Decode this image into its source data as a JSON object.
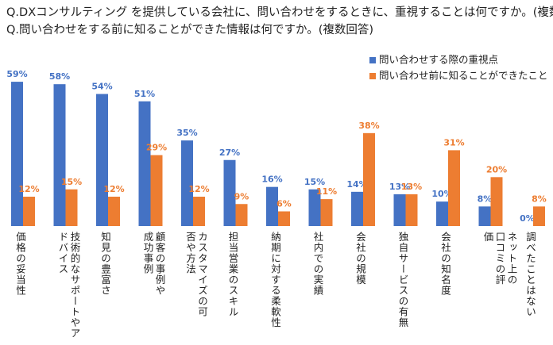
{
  "chart_data": {
    "type": "bar",
    "title": "Q.DXコンサルティング を提供している会社に、問い合わせをするときに、重視することは何ですか。(複数回答)",
    "subtitle": "Q.問い合わせをする前に知ることができた情報は何ですか。(複数回答)",
    "categories": [
      "価格の妥当性",
      "技術的なサポートやアドバイス",
      "知見の豊富さ",
      "顧客の事例や成功事例",
      "カスタマイズの可否や方法",
      "担当営業のスキル",
      "納期に対する柔軟性",
      "社内での実績",
      "会社の規模",
      "独自サービスの有無",
      "会社の知名度",
      "ネット上の口コミの評価",
      "調べたことはない"
    ],
    "ylim": [
      0,
      60
    ],
    "legend": "top-right",
    "series": [
      {
        "name": "問い合わせする際の重視点",
        "color": "#4472c4",
        "values": [
          59,
          58,
          54,
          51,
          35,
          27,
          16,
          15,
          14,
          13,
          10,
          8,
          0
        ],
        "value_labels": [
          "59%",
          "58%",
          "54%",
          "51%",
          "35%",
          "27%",
          "16%",
          "15%",
          "14%",
          "13%",
          "10%",
          "8%",
          "0%"
        ]
      },
      {
        "name": "問い合わせ前に知ることができたこと",
        "color": "#ed7d31",
        "values": [
          12,
          15,
          12,
          29,
          12,
          9,
          6,
          11,
          38,
          13,
          31,
          20,
          8
        ],
        "value_labels": [
          "12%",
          "15%",
          "12%",
          "29%",
          "12%",
          "9%",
          "6%",
          "11%",
          "38%",
          "13%",
          "31%",
          "20%",
          "8%"
        ]
      }
    ]
  }
}
